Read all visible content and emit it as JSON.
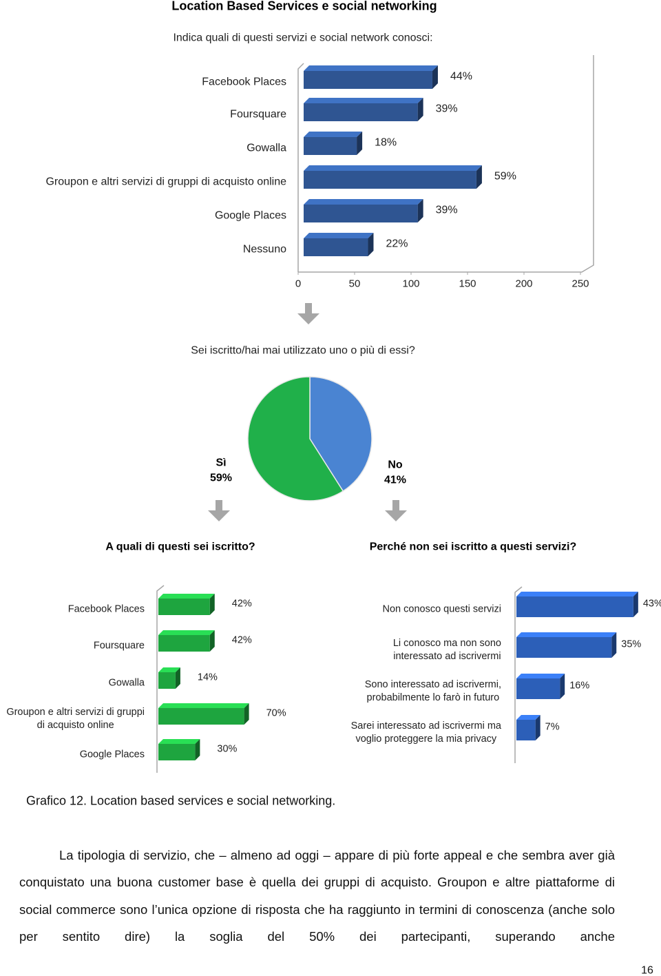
{
  "title": "Location Based Services e social networking",
  "chart_data": [
    {
      "type": "bar",
      "title": "Indica quali di questi servizi e social network conosci:",
      "categories": [
        "Facebook Places",
        "Foursquare",
        "Gowalla",
        "Groupon e altri servizi di gruppi di acquisto online",
        "Google Places",
        "Nessuno"
      ],
      "values": [
        114,
        101,
        47,
        153,
        101,
        57
      ],
      "data_labels": [
        "44%",
        "39%",
        "18%",
        "59%",
        "39%",
        "22%"
      ],
      "color": "#2f5592",
      "xlim": [
        0,
        250
      ],
      "xticks": [
        0,
        50,
        100,
        150,
        200,
        250
      ]
    },
    {
      "type": "pie",
      "title": "Sei iscritto/hai mai utilizzato uno o più di essi?",
      "categories": [
        "Sì",
        "No"
      ],
      "values": [
        59,
        41
      ],
      "value_labels": [
        "59%",
        "41%"
      ],
      "colors": [
        "#20b04a",
        "#4a84d2"
      ]
    },
    {
      "type": "bar",
      "title": "A quali di questi sei iscritto?",
      "categories": [
        "Facebook Places",
        "Foursquare",
        "Gowalla",
        "Groupon e altri servizi di gruppi\ndi acquisto online",
        "Google Places"
      ],
      "values": [
        42,
        42,
        14,
        70,
        30
      ],
      "value_labels": [
        "42%",
        "42%",
        "14%",
        "70%",
        "30%"
      ],
      "color": "#1ea53f"
    },
    {
      "type": "bar",
      "title": "Perché non sei iscritto a questi servizi?",
      "categories": [
        "Non conosco questi servizi",
        "Li conosco ma non sono\ninteressato ad iscrivermi",
        "Sono interessato ad iscrivermi,\nprobabilmente lo farò in futuro",
        "Sarei interessato ad iscrivermi ma\nvoglio proteggere la mia privacy"
      ],
      "values": [
        43,
        35,
        16,
        7
      ],
      "value_labels": [
        "43%",
        "35%",
        "16%",
        "7%"
      ],
      "color": "#2c5fb8"
    }
  ],
  "caption": "Grafico 12. Location based services e social networking.",
  "paragraph": "La tipologia di servizio, che – almeno ad oggi – appare di più forte appeal e che sembra aver già conquistato una buona customer base è quella dei gruppi di acquisto. Groupon e altre piattaforme di social commerce sono l’unica opzione di risposta che ha raggiunto in termini di conoscenza (anche solo per sentito dire) la soglia del 50% dei partecipanti, superando anche",
  "page_number": "16"
}
